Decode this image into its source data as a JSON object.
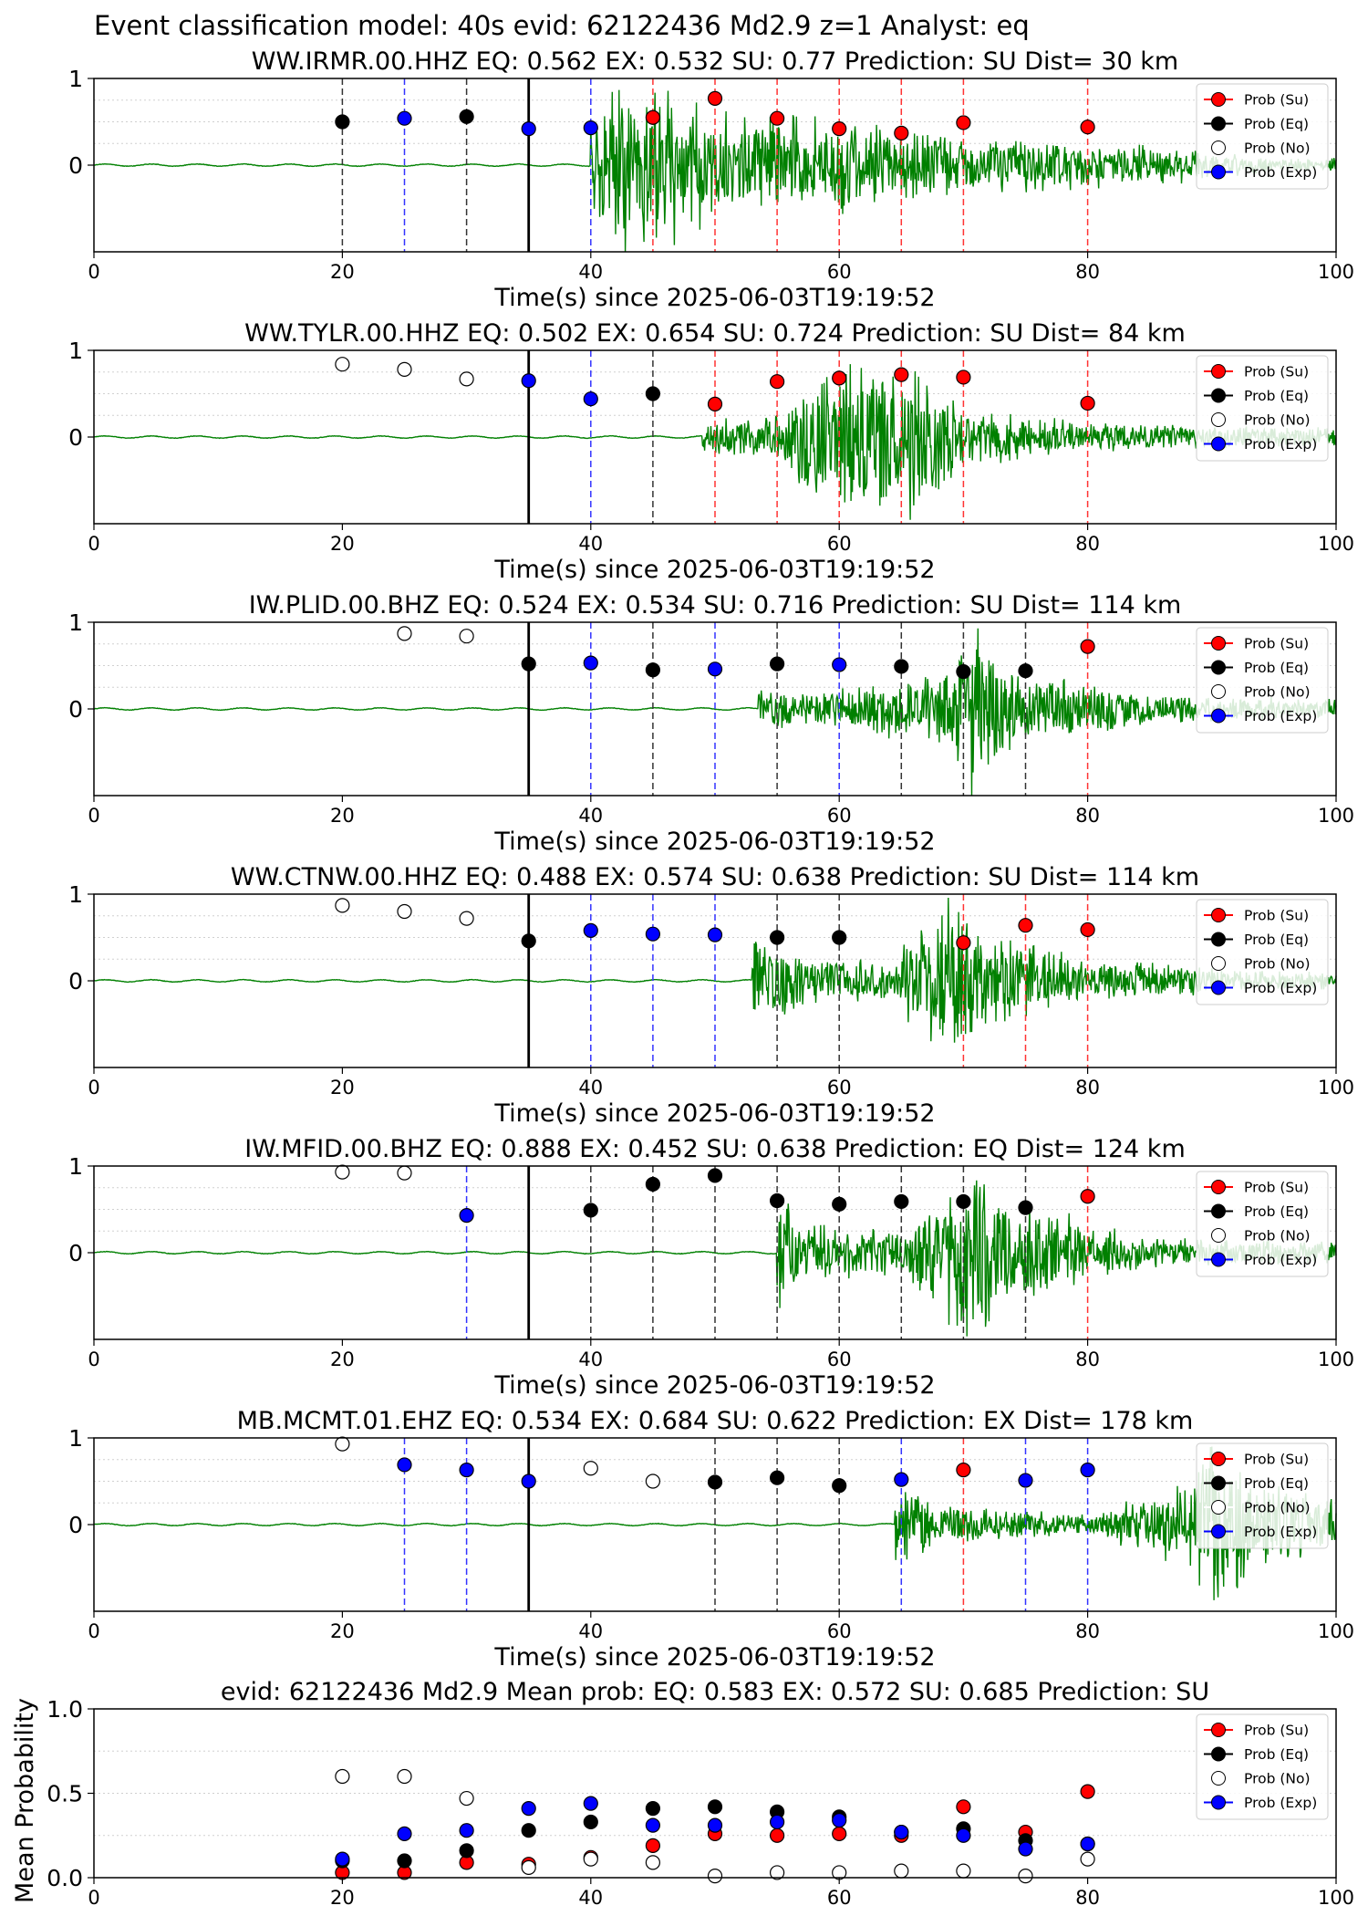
{
  "figure": {
    "suptitle": "Event classification model: 40s evid: 62122436 Md2.9 z=1 Analyst: eq"
  },
  "legend": [
    "Prob (Su)",
    "Prob (Eq)",
    "Prob (No)",
    "Prob (Exp)"
  ],
  "colors": {
    "su": "#ff0000",
    "eq": "#000000",
    "no": "#ffffff",
    "exp": "#0000ff",
    "trace": "#008000"
  },
  "chart_data": [
    {
      "type": "scatter",
      "title": "WW.IRMR.00.HHZ   EQ: 0.562  EX: 0.532  SU: 0.77   Prediction: SU    Dist= 30 km",
      "xlabel": "Time(s) since 2025-06-03T19:19:52",
      "ylabel": "",
      "xlim": [
        0,
        100
      ],
      "ylim": [
        -1,
        1
      ],
      "xticks": [
        "0",
        "20",
        "40",
        "60",
        "80",
        "100"
      ],
      "yticks": [
        "1",
        "0"
      ],
      "legend_position": "top-right",
      "trace_onset": 40,
      "waveform": {
        "onset": 40,
        "bursts": [
          [
            40,
            0.55
          ],
          [
            44,
            0.9
          ],
          [
            50,
            0.55
          ],
          [
            60,
            0.45
          ],
          [
            70,
            0.3
          ],
          [
            85,
            0.2
          ]
        ],
        "end_amp": 0.07
      },
      "pick_line": 35,
      "points": [
        {
          "x": 20,
          "y": 0.5,
          "cls": "eq"
        },
        {
          "x": 25,
          "y": 0.54,
          "cls": "exp"
        },
        {
          "x": 30,
          "y": 0.56,
          "cls": "eq"
        },
        {
          "x": 35,
          "y": 0.42,
          "cls": "exp"
        },
        {
          "x": 40,
          "y": 0.43,
          "cls": "exp"
        },
        {
          "x": 45,
          "y": 0.55,
          "cls": "su"
        },
        {
          "x": 50,
          "y": 0.77,
          "cls": "su"
        },
        {
          "x": 55,
          "y": 0.54,
          "cls": "su"
        },
        {
          "x": 60,
          "y": 0.42,
          "cls": "su"
        },
        {
          "x": 65,
          "y": 0.37,
          "cls": "su"
        },
        {
          "x": 70,
          "y": 0.49,
          "cls": "su"
        },
        {
          "x": 80,
          "y": 0.44,
          "cls": "su"
        }
      ]
    },
    {
      "type": "scatter",
      "title": "WW.TYLR.00.HHZ   EQ: 0.502  EX: 0.654  SU: 0.724   Prediction: SU    Dist= 84 km",
      "xlabel": "Time(s) since 2025-06-03T19:19:52",
      "ylabel": "",
      "xlim": [
        0,
        100
      ],
      "ylim": [
        -1,
        1
      ],
      "xticks": [
        "0",
        "20",
        "40",
        "60",
        "80",
        "100"
      ],
      "yticks": [
        "1",
        "0"
      ],
      "legend_position": "top-right",
      "waveform": {
        "onset": 49,
        "bursts": [
          [
            49,
            0.15
          ],
          [
            55,
            0.25
          ],
          [
            60,
            0.85
          ],
          [
            64,
            0.75
          ],
          [
            66,
            0.9
          ],
          [
            70,
            0.3
          ],
          [
            80,
            0.15
          ],
          [
            95,
            0.1
          ]
        ],
        "end_amp": 0.07
      },
      "pick_line": 35,
      "points": [
        {
          "x": 20,
          "y": 0.84,
          "cls": "no"
        },
        {
          "x": 25,
          "y": 0.78,
          "cls": "no"
        },
        {
          "x": 30,
          "y": 0.67,
          "cls": "no"
        },
        {
          "x": 35,
          "y": 0.65,
          "cls": "exp"
        },
        {
          "x": 40,
          "y": 0.44,
          "cls": "exp"
        },
        {
          "x": 45,
          "y": 0.5,
          "cls": "eq"
        },
        {
          "x": 50,
          "y": 0.38,
          "cls": "su"
        },
        {
          "x": 55,
          "y": 0.64,
          "cls": "su"
        },
        {
          "x": 60,
          "y": 0.68,
          "cls": "su"
        },
        {
          "x": 65,
          "y": 0.72,
          "cls": "su"
        },
        {
          "x": 70,
          "y": 0.69,
          "cls": "su"
        },
        {
          "x": 80,
          "y": 0.39,
          "cls": "su"
        }
      ]
    },
    {
      "type": "scatter",
      "title": "IW.PLID.00.BHZ   EQ: 0.524  EX: 0.534  SU: 0.716   Prediction: SU    Dist= 114 km",
      "xlabel": "Time(s) since 2025-06-03T19:19:52",
      "ylabel": "",
      "xlim": [
        0,
        100
      ],
      "ylim": [
        -1,
        1
      ],
      "xticks": [
        "0",
        "20",
        "40",
        "60",
        "80",
        "100"
      ],
      "yticks": [
        "1",
        "0"
      ],
      "legend_position": "top-right",
      "waveform": {
        "onset": 53.5,
        "bursts": [
          [
            53.5,
            0.2
          ],
          [
            58,
            0.15
          ],
          [
            68,
            0.35
          ],
          [
            71,
            0.95
          ],
          [
            74,
            0.4
          ],
          [
            85,
            0.15
          ],
          [
            98,
            0.1
          ]
        ],
        "end_amp": 0.07
      },
      "pick_line": 35,
      "points": [
        {
          "x": 25,
          "y": 0.87,
          "cls": "no"
        },
        {
          "x": 30,
          "y": 0.84,
          "cls": "no"
        },
        {
          "x": 35,
          "y": 0.52,
          "cls": "eq"
        },
        {
          "x": 40,
          "y": 0.53,
          "cls": "exp"
        },
        {
          "x": 45,
          "y": 0.45,
          "cls": "eq"
        },
        {
          "x": 50,
          "y": 0.46,
          "cls": "exp"
        },
        {
          "x": 55,
          "y": 0.52,
          "cls": "eq"
        },
        {
          "x": 60,
          "y": 0.51,
          "cls": "exp"
        },
        {
          "x": 65,
          "y": 0.49,
          "cls": "eq"
        },
        {
          "x": 70,
          "y": 0.43,
          "cls": "eq"
        },
        {
          "x": 75,
          "y": 0.44,
          "cls": "eq"
        },
        {
          "x": 80,
          "y": 0.72,
          "cls": "su"
        }
      ]
    },
    {
      "type": "scatter",
      "title": "WW.CTNW.00.HHZ   EQ: 0.488  EX: 0.574  SU: 0.638   Prediction: SU    Dist= 114 km",
      "xlabel": "Time(s) since 2025-06-03T19:19:52",
      "ylabel": "",
      "xlim": [
        0,
        100
      ],
      "ylim": [
        -1,
        1
      ],
      "xticks": [
        "0",
        "20",
        "40",
        "60",
        "80",
        "100"
      ],
      "yticks": [
        "1",
        "0"
      ],
      "legend_position": "top-right",
      "waveform": {
        "onset": 53,
        "bursts": [
          [
            53,
            0.45
          ],
          [
            58,
            0.25
          ],
          [
            64,
            0.2
          ],
          [
            69,
            0.85
          ],
          [
            72,
            0.5
          ],
          [
            80,
            0.2
          ],
          [
            95,
            0.1
          ]
        ],
        "end_amp": 0.07
      },
      "pick_line": 35,
      "points": [
        {
          "x": 20,
          "y": 0.87,
          "cls": "no"
        },
        {
          "x": 25,
          "y": 0.8,
          "cls": "no"
        },
        {
          "x": 30,
          "y": 0.72,
          "cls": "no"
        },
        {
          "x": 35,
          "y": 0.46,
          "cls": "eq"
        },
        {
          "x": 40,
          "y": 0.58,
          "cls": "exp"
        },
        {
          "x": 45,
          "y": 0.54,
          "cls": "exp"
        },
        {
          "x": 50,
          "y": 0.53,
          "cls": "exp"
        },
        {
          "x": 55,
          "y": 0.5,
          "cls": "eq"
        },
        {
          "x": 60,
          "y": 0.5,
          "cls": "eq"
        },
        {
          "x": 70,
          "y": 0.44,
          "cls": "su"
        },
        {
          "x": 75,
          "y": 0.64,
          "cls": "su"
        },
        {
          "x": 80,
          "y": 0.59,
          "cls": "su"
        }
      ]
    },
    {
      "type": "scatter",
      "title": "IW.MFID.00.BHZ   EQ: 0.888  EX: 0.452  SU: 0.638   Prediction: EQ    Dist= 124 km",
      "xlabel": "Time(s) since 2025-06-03T19:19:52",
      "ylabel": "",
      "xlim": [
        0,
        100
      ],
      "ylim": [
        -1,
        1
      ],
      "xticks": [
        "0",
        "20",
        "40",
        "60",
        "80",
        "100"
      ],
      "yticks": [
        "1",
        "0"
      ],
      "legend_position": "top-right",
      "waveform": {
        "onset": 55,
        "bursts": [
          [
            55,
            0.6
          ],
          [
            58,
            0.3
          ],
          [
            65,
            0.2
          ],
          [
            71,
            0.95
          ],
          [
            74,
            0.5
          ],
          [
            85,
            0.15
          ],
          [
            96,
            0.12
          ]
        ],
        "end_amp": 0.07
      },
      "pick_line": 35,
      "points": [
        {
          "x": 20,
          "y": 0.93,
          "cls": "no"
        },
        {
          "x": 25,
          "y": 0.92,
          "cls": "no"
        },
        {
          "x": 30,
          "y": 0.43,
          "cls": "exp"
        },
        {
          "x": 40,
          "y": 0.49,
          "cls": "eq"
        },
        {
          "x": 45,
          "y": 0.79,
          "cls": "eq"
        },
        {
          "x": 50,
          "y": 0.89,
          "cls": "eq"
        },
        {
          "x": 55,
          "y": 0.6,
          "cls": "eq"
        },
        {
          "x": 60,
          "y": 0.56,
          "cls": "eq"
        },
        {
          "x": 65,
          "y": 0.59,
          "cls": "eq"
        },
        {
          "x": 70,
          "y": 0.59,
          "cls": "eq"
        },
        {
          "x": 75,
          "y": 0.52,
          "cls": "eq"
        },
        {
          "x": 80,
          "y": 0.65,
          "cls": "su"
        }
      ]
    },
    {
      "type": "scatter",
      "title": "MB.MCMT.01.EHZ   EQ: 0.534  EX: 0.684  SU: 0.622   Prediction: EX    Dist= 178 km",
      "xlabel": "Time(s) since 2025-06-03T19:19:52",
      "ylabel": "",
      "xlim": [
        0,
        100
      ],
      "ylim": [
        -1,
        1
      ],
      "xticks": [
        "0",
        "20",
        "40",
        "60",
        "80",
        "100"
      ],
      "yticks": [
        "1",
        "0"
      ],
      "legend_position": "top-right",
      "waveform": {
        "onset": 64.5,
        "bursts": [
          [
            64.5,
            0.4
          ],
          [
            68,
            0.2
          ],
          [
            80,
            0.1
          ],
          [
            88,
            0.4
          ],
          [
            90,
            0.95
          ],
          [
            93,
            0.5
          ],
          [
            98,
            0.3
          ]
        ],
        "end_amp": 0.15
      },
      "pick_line": 35,
      "points": [
        {
          "x": 20,
          "y": 0.93,
          "cls": "no"
        },
        {
          "x": 25,
          "y": 0.69,
          "cls": "exp"
        },
        {
          "x": 30,
          "y": 0.63,
          "cls": "exp"
        },
        {
          "x": 35,
          "y": 0.5,
          "cls": "exp"
        },
        {
          "x": 40,
          "y": 0.65,
          "cls": "no"
        },
        {
          "x": 45,
          "y": 0.5,
          "cls": "no"
        },
        {
          "x": 50,
          "y": 0.49,
          "cls": "eq"
        },
        {
          "x": 55,
          "y": 0.54,
          "cls": "eq"
        },
        {
          "x": 60,
          "y": 0.45,
          "cls": "eq"
        },
        {
          "x": 65,
          "y": 0.52,
          "cls": "exp"
        },
        {
          "x": 70,
          "y": 0.63,
          "cls": "su"
        },
        {
          "x": 75,
          "y": 0.51,
          "cls": "exp"
        },
        {
          "x": 80,
          "y": 0.63,
          "cls": "exp"
        }
      ]
    },
    {
      "type": "scatter",
      "title": "evid: 62122436  Md2.9   Mean prob:   EQ: 0.583  EX: 0.572  SU: 0.685   Prediction: SU",
      "xlabel": "",
      "ylabel": "Mean Probability",
      "xlim": [
        0,
        100
      ],
      "ylim": [
        0,
        1
      ],
      "xticks": [
        "0",
        "20",
        "40",
        "60",
        "80",
        "100"
      ],
      "yticks": [
        "1.0",
        "0.5",
        "0.0"
      ],
      "legend_position": "top-right",
      "series": [
        {
          "name": "Prob (Su)",
          "cls": "su",
          "x": [
            20,
            25,
            30,
            35,
            40,
            45,
            50,
            55,
            60,
            65,
            70,
            75,
            80
          ],
          "y": [
            0.03,
            0.03,
            0.09,
            0.08,
            0.12,
            0.19,
            0.26,
            0.25,
            0.26,
            0.25,
            0.42,
            0.27,
            0.51
          ]
        },
        {
          "name": "Prob (Eq)",
          "cls": "eq",
          "x": [
            20,
            25,
            30,
            35,
            40,
            45,
            50,
            55,
            60,
            65,
            70,
            75,
            80
          ],
          "y": [
            0.1,
            0.1,
            0.16,
            0.28,
            0.33,
            0.41,
            0.42,
            0.39,
            0.36,
            0.27,
            0.29,
            0.22,
            0.2
          ]
        },
        {
          "name": "Prob (No)",
          "cls": "no",
          "x": [
            20,
            25,
            30,
            35,
            40,
            45,
            50,
            55,
            60,
            65,
            70,
            75,
            80
          ],
          "y": [
            0.6,
            0.6,
            0.47,
            0.06,
            0.11,
            0.09,
            0.01,
            0.03,
            0.03,
            0.04,
            0.04,
            0.01,
            0.11
          ]
        },
        {
          "name": "Prob (Exp)",
          "cls": "exp",
          "x": [
            20,
            25,
            30,
            35,
            40,
            45,
            50,
            55,
            60,
            65,
            70,
            75,
            80
          ],
          "y": [
            0.11,
            0.26,
            0.28,
            0.41,
            0.44,
            0.31,
            0.31,
            0.33,
            0.34,
            0.27,
            0.25,
            0.17,
            0.2
          ]
        }
      ]
    }
  ]
}
